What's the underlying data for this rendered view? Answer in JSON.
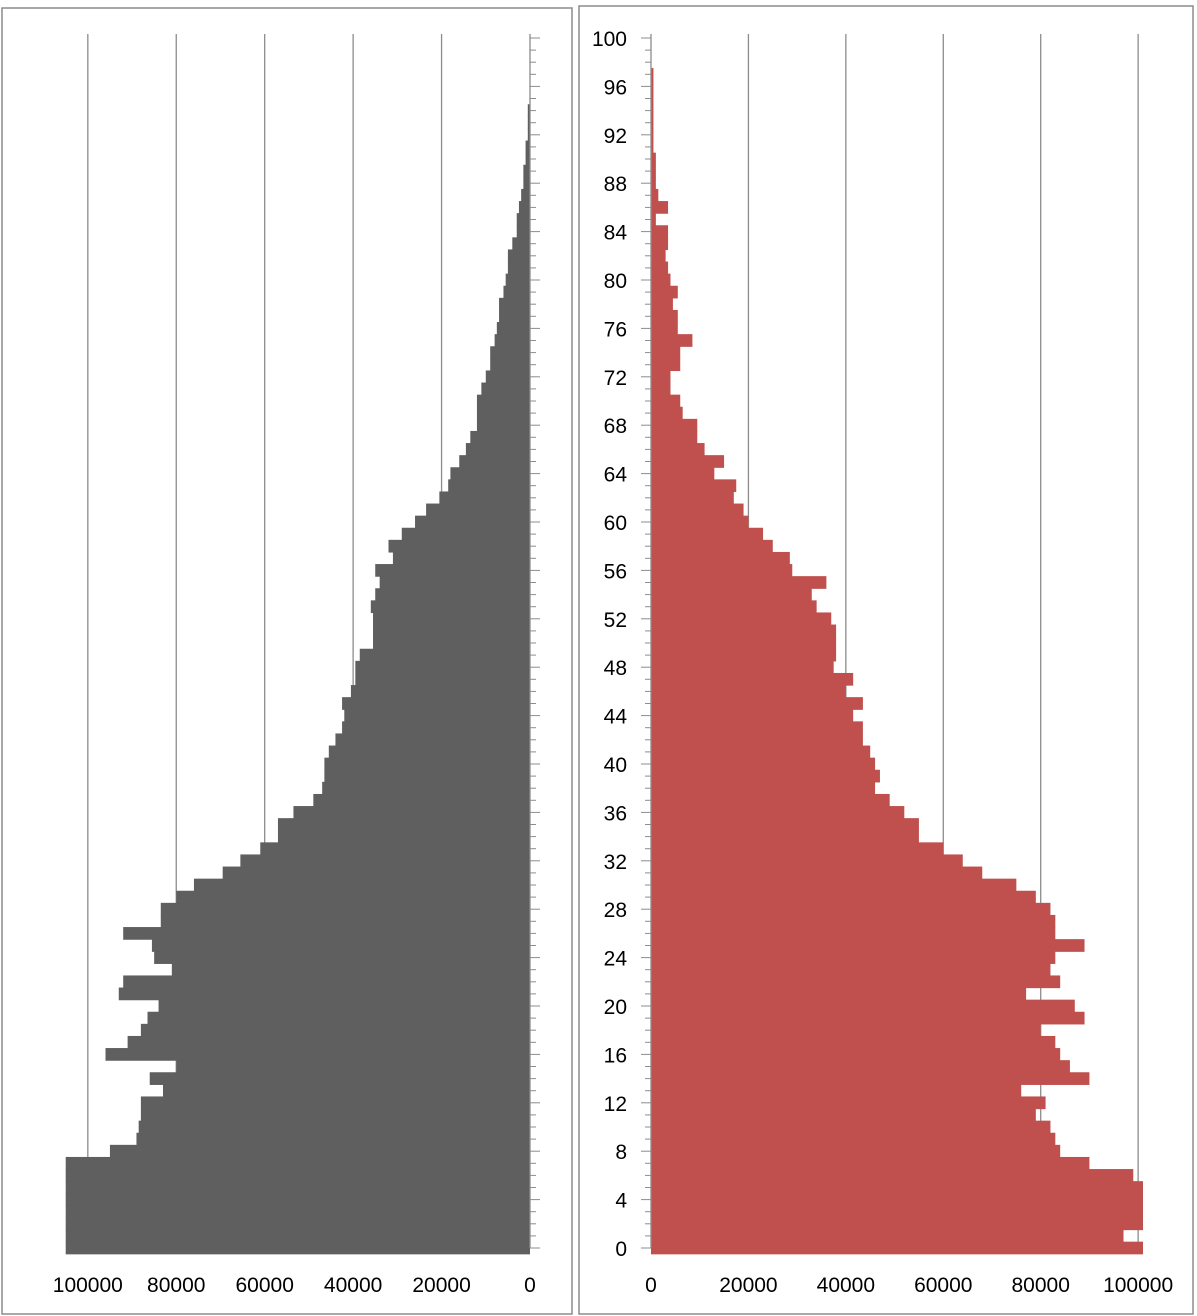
{
  "chart_data": [
    {
      "type": "bar",
      "orientation": "horizontal",
      "direction": "right-to-left",
      "color": "#5f5f5f",
      "title": "",
      "xlabel": "",
      "ylabel": "",
      "xlim": [
        0,
        110000
      ],
      "xticks": [
        0,
        20000,
        40000,
        60000,
        80000,
        100000
      ],
      "xtick_labels": [
        "0",
        "20000",
        "40000",
        "60000",
        "80000",
        "100000"
      ],
      "ylim": [
        0,
        100
      ],
      "grid": "vertical",
      "categories": [
        0,
        1,
        2,
        3,
        4,
        5,
        6,
        7,
        8,
        9,
        10,
        11,
        12,
        13,
        14,
        15,
        16,
        17,
        18,
        19,
        20,
        21,
        22,
        23,
        24,
        25,
        26,
        27,
        28,
        29,
        30,
        31,
        32,
        33,
        34,
        35,
        36,
        37,
        38,
        39,
        40,
        41,
        42,
        43,
        44,
        45,
        46,
        47,
        48,
        49,
        50,
        51,
        52,
        53,
        54,
        55,
        56,
        57,
        58,
        59,
        60,
        61,
        62,
        63,
        64,
        65,
        66,
        67,
        68,
        69,
        70,
        71,
        72,
        73,
        74,
        75,
        76,
        77,
        78,
        79,
        80,
        81,
        82,
        83,
        84,
        85,
        86,
        87,
        88,
        89,
        90,
        91,
        92,
        93,
        94,
        95,
        96,
        97,
        98,
        99,
        100
      ],
      "values": [
        105000,
        105000,
        105000,
        105000,
        105000,
        105000,
        105000,
        105000,
        95000,
        89000,
        88500,
        88000,
        88000,
        83000,
        86000,
        80000,
        96000,
        91000,
        88000,
        86500,
        84000,
        93000,
        92000,
        81000,
        85000,
        85500,
        92000,
        83500,
        83500,
        80000,
        76000,
        69500,
        65500,
        61000,
        57000,
        57000,
        53500,
        49000,
        47000,
        46500,
        46500,
        45500,
        44000,
        42500,
        42000,
        42500,
        40500,
        39500,
        39500,
        38500,
        35500,
        35500,
        35500,
        36000,
        35000,
        34000,
        35000,
        31000,
        32000,
        29000,
        26000,
        23500,
        20500,
        18500,
        18000,
        16000,
        14500,
        13500,
        12000,
        12000,
        12000,
        11000,
        10000,
        9000,
        9000,
        8000,
        7500,
        7000,
        7000,
        6000,
        5500,
        5000,
        5000,
        4000,
        3000,
        3000,
        2500,
        2000,
        1500,
        1500,
        1000,
        1000,
        500,
        500,
        500,
        0,
        0,
        0,
        0,
        0,
        0
      ]
    },
    {
      "type": "bar",
      "orientation": "horizontal",
      "direction": "left-to-right",
      "color": "#c0504d",
      "title": "",
      "xlabel": "",
      "ylabel": "",
      "xlim": [
        0,
        101000
      ],
      "xticks": [
        0,
        20000,
        40000,
        60000,
        80000,
        100000
      ],
      "xtick_labels": [
        "0",
        "20000",
        "40000",
        "60000",
        "80000",
        "100000"
      ],
      "ylim": [
        0,
        100
      ],
      "yticks": [
        0,
        4,
        8,
        12,
        16,
        20,
        24,
        28,
        32,
        36,
        40,
        44,
        48,
        52,
        56,
        60,
        64,
        68,
        72,
        76,
        80,
        84,
        88,
        92,
        96,
        100
      ],
      "ytick_labels": [
        "0",
        "4",
        "8",
        "12",
        "16",
        "20",
        "24",
        "28",
        "32",
        "36",
        "40",
        "44",
        "48",
        "52",
        "56",
        "60",
        "64",
        "68",
        "72",
        "76",
        "80",
        "84",
        "88",
        "92",
        "96",
        "100"
      ],
      "grid": "vertical",
      "categories": [
        0,
        1,
        2,
        3,
        4,
        5,
        6,
        7,
        8,
        9,
        10,
        11,
        12,
        13,
        14,
        15,
        16,
        17,
        18,
        19,
        20,
        21,
        22,
        23,
        24,
        25,
        26,
        27,
        28,
        29,
        30,
        31,
        32,
        33,
        34,
        35,
        36,
        37,
        38,
        39,
        40,
        41,
        42,
        43,
        44,
        45,
        46,
        47,
        48,
        49,
        50,
        51,
        52,
        53,
        54,
        55,
        56,
        57,
        58,
        59,
        60,
        61,
        62,
        63,
        64,
        65,
        66,
        67,
        68,
        69,
        70,
        71,
        72,
        73,
        74,
        75,
        76,
        77,
        78,
        79,
        80,
        81,
        82,
        83,
        84,
        85,
        86,
        87,
        88,
        89,
        90,
        91,
        92,
        93,
        94,
        95,
        96,
        97,
        98,
        99,
        100
      ],
      "values": [
        101000,
        97000,
        101000,
        101000,
        101000,
        101000,
        99000,
        90000,
        84000,
        83000,
        82000,
        79000,
        81000,
        76000,
        90000,
        86000,
        84000,
        83000,
        80000,
        89000,
        87000,
        77000,
        84000,
        82000,
        83000,
        89000,
        83000,
        83000,
        82000,
        79000,
        75000,
        68000,
        64000,
        60000,
        55000,
        55000,
        52000,
        49000,
        46000,
        47000,
        46000,
        45000,
        43500,
        43500,
        41500,
        43500,
        40000,
        41500,
        37500,
        38000,
        38000,
        38000,
        37000,
        34000,
        33000,
        36000,
        29000,
        28500,
        25000,
        23000,
        20000,
        19000,
        17000,
        17500,
        13000,
        15000,
        11000,
        9500,
        9500,
        6500,
        6000,
        4000,
        4000,
        6000,
        6000,
        8500,
        5500,
        5500,
        4500,
        5500,
        4000,
        3500,
        3000,
        3500,
        3500,
        1000,
        3500,
        1500,
        1000,
        1000,
        1000,
        500,
        500,
        500,
        500,
        500,
        500,
        500,
        0,
        0,
        0
      ]
    }
  ]
}
